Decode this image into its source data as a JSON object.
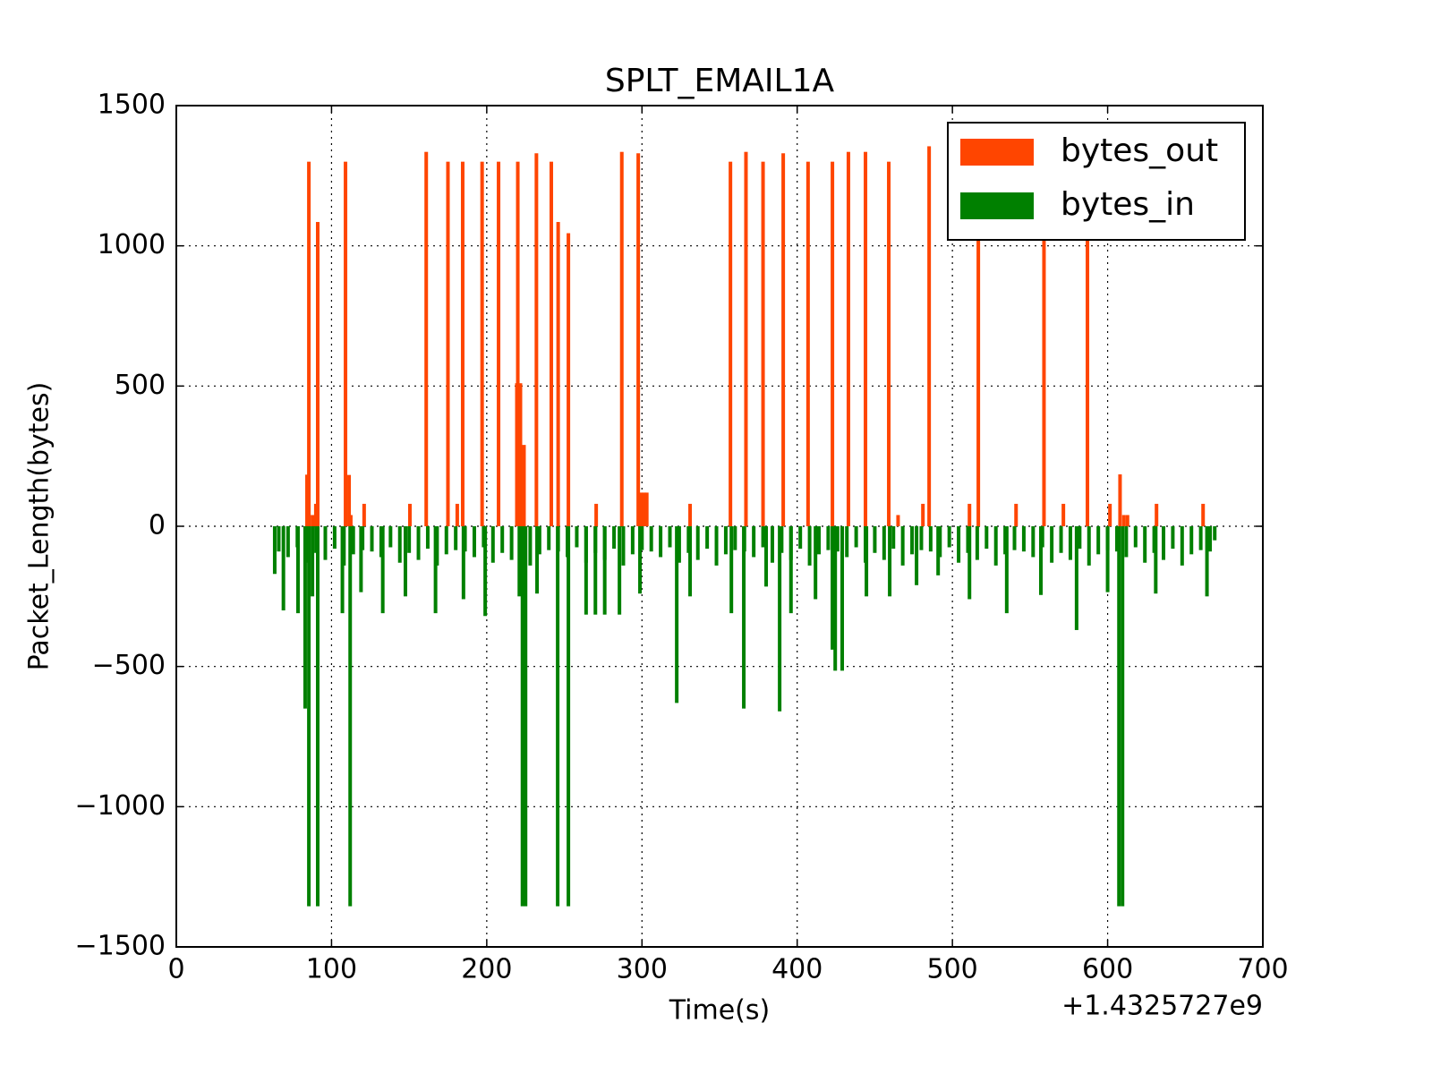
{
  "chart_data": {
    "type": "bar",
    "title": "SPLT_EMAIL1A",
    "xlabel": "Time(s)",
    "ylabel": "Packet_Length(bytes)",
    "x_offset_label": "+1.4325727e9",
    "xlim": [
      0,
      700
    ],
    "xticks": [
      0,
      100,
      200,
      300,
      400,
      500,
      600,
      700
    ],
    "ylim": [
      -1500,
      1500
    ],
    "yticks": [
      {
        "value": -1500,
        "label": "−1500"
      },
      {
        "value": -1000,
        "label": "−1000"
      },
      {
        "value": -500,
        "label": "−500"
      },
      0,
      500,
      1000,
      1500
    ],
    "grid": true,
    "legend": "upper right",
    "series": [
      {
        "name": "bytes_out",
        "color": "#ff4500",
        "x": [
          85.4,
          84.2,
          87.7,
          91.1,
          89.9,
          109,
          111.3,
          112.4,
          121,
          150.5,
          161,
          175,
          181,
          184.5,
          197,
          207.6,
          220,
          219.4,
          221.7,
          224,
          232,
          241.6,
          246,
          252.6,
          270.5,
          287,
          297.6,
          299.5,
          301.3,
          303.1,
          331,
          357,
          367,
          378,
          391,
          407,
          422.7,
          433,
          444,
          459,
          465,
          481,
          485,
          511,
          516.7,
          541,
          559,
          571.5,
          587,
          601.5,
          608,
          610.5,
          612.8,
          631.5,
          661.5
        ],
        "values": [
          1300,
          184,
          40,
          1085,
          80,
          1300,
          183,
          40,
          80,
          80,
          1335,
          1300,
          80,
          1300,
          1300,
          1300,
          1300,
          510,
          510,
          290,
          1330,
          1300,
          1085,
          1045,
          80,
          1335,
          1330,
          120,
          120,
          120,
          80,
          1300,
          1335,
          1300,
          1330,
          1300,
          1300,
          1335,
          1335,
          1300,
          40,
          80,
          1355,
          80,
          1300,
          80,
          1300,
          80,
          1300,
          80,
          185,
          40,
          40,
          80,
          80
        ]
      },
      {
        "name": "bytes_in",
        "color": "#008000",
        "x": [
          63.4,
          69,
          78.4,
          83,
          85.4,
          87.7,
          91.1,
          107,
          112,
          119,
          133,
          147.6,
          167,
          185,
          199,
          221,
          223,
          225,
          232.4,
          245.7,
          252.6,
          264,
          270,
          276,
          285.5,
          298.7,
          322.4,
          331,
          357.6,
          365.6,
          380,
          388.7,
          396,
          411.8,
          422.7,
          424.5,
          429,
          444.6,
          459.6,
          476.9,
          490.8,
          511,
          535,
          557,
          580,
          600,
          607.3,
          609.6,
          631,
          664,
          669,
          66,
          72,
          78,
          84,
          90,
          96,
          102,
          108,
          114,
          120,
          126,
          132,
          138,
          144,
          150,
          156,
          162,
          168,
          174,
          180,
          186,
          192,
          198,
          204,
          210,
          216,
          222,
          228,
          234,
          240,
          246,
          252,
          258,
          264,
          270,
          276,
          282,
          288,
          294,
          300,
          306,
          312,
          318,
          324,
          330,
          336,
          342,
          348,
          354,
          360,
          366,
          372,
          378,
          384,
          390,
          396,
          402,
          408,
          414,
          420,
          426,
          432,
          438,
          444,
          450,
          456,
          462,
          468,
          474,
          480,
          486,
          492,
          498,
          504,
          510,
          516,
          522,
          528,
          534,
          540,
          546,
          552,
          558,
          564,
          570,
          576,
          582,
          588,
          594,
          600,
          606,
          612,
          618,
          624,
          630,
          636,
          642,
          648,
          654,
          660,
          666
        ],
        "values": [
          -170,
          -300,
          -310,
          -650,
          -1355,
          -250,
          -1355,
          -310,
          -1355,
          -235,
          -310,
          -250,
          -310,
          -260,
          -320,
          -250,
          -1355,
          -1355,
          -240,
          -1355,
          -1355,
          -315,
          -315,
          -315,
          -315,
          -240,
          -630,
          -250,
          -310,
          -650,
          -215,
          -660,
          -310,
          -260,
          -440,
          -515,
          -515,
          -250,
          -250,
          -210,
          -175,
          -260,
          -310,
          -245,
          -370,
          -235,
          -1355,
          -1355,
          -240,
          -250,
          -50,
          -90,
          -110,
          -75,
          -130,
          -95,
          -120,
          -80,
          -140,
          -100,
          -85,
          -90,
          -110,
          -75,
          -130,
          -95,
          -120,
          -80,
          -140,
          -100,
          -85,
          -90,
          -110,
          -75,
          -130,
          -95,
          -120,
          -80,
          -140,
          -100,
          -85,
          -90,
          -110,
          -75,
          -130,
          -95,
          -120,
          -80,
          -140,
          -100,
          -85,
          -90,
          -110,
          -75,
          -130,
          -95,
          -120,
          -80,
          -140,
          -100,
          -85,
          -90,
          -110,
          -75,
          -130,
          -95,
          -120,
          -80,
          -140,
          -100,
          -85,
          -90,
          -110,
          -75,
          -130,
          -95,
          -120,
          -80,
          -140,
          -100,
          -85,
          -90,
          -110,
          -75,
          -130,
          -95,
          -120,
          -80,
          -140,
          -100,
          -85,
          -90,
          -110,
          -75,
          -130,
          -95,
          -120,
          -80,
          -140,
          -100,
          -85,
          -90,
          -110,
          -75,
          -130,
          -95,
          -120,
          -80,
          -140,
          -100,
          -85,
          -90
        ]
      }
    ]
  }
}
